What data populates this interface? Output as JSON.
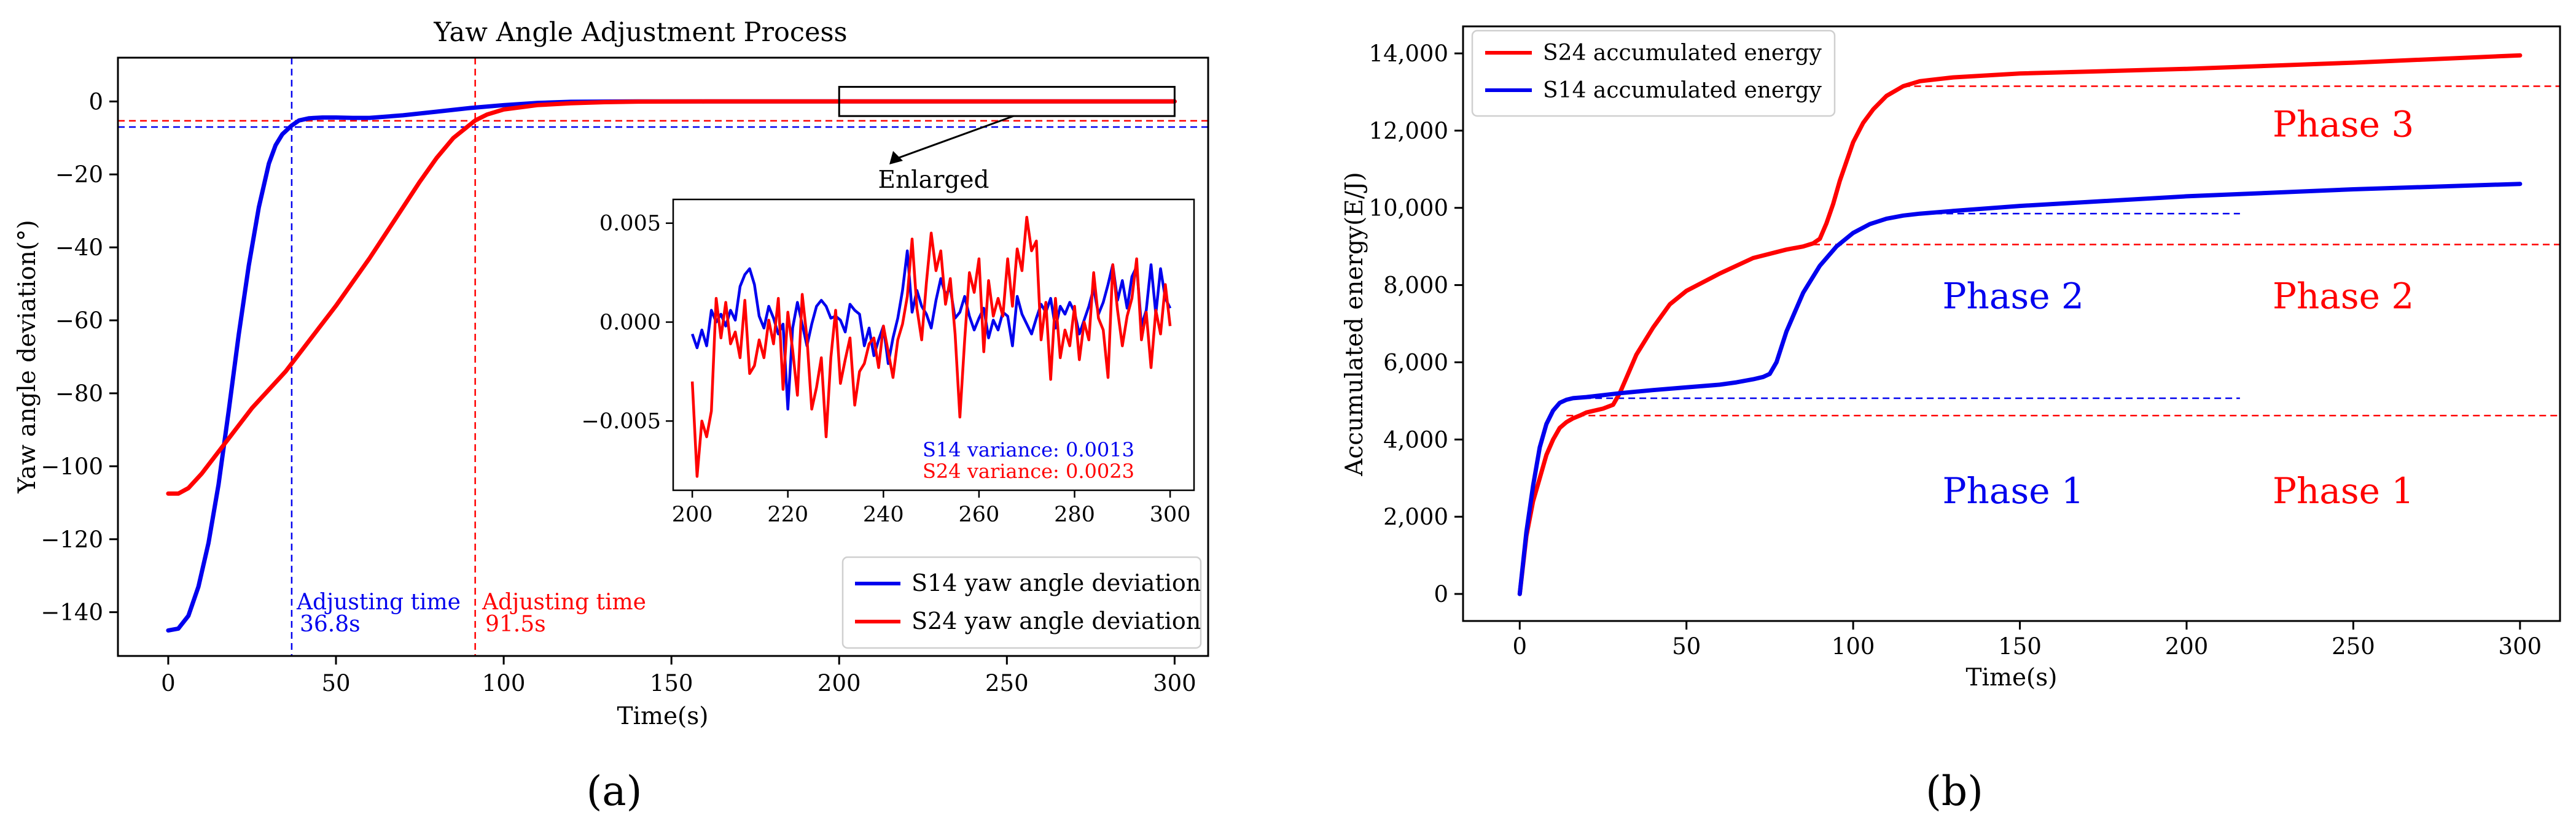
{
  "colors": {
    "blue": "#0000ee",
    "red": "#ff0000",
    "axis": "#000000"
  },
  "chart_data": [
    {
      "id": "a",
      "type": "line",
      "panel_label": "(a)",
      "title": "Yaw Angle Adjustment Process",
      "xlabel": "Time(s)",
      "ylabel": "Yaw angle deviation(°)",
      "xlim": [
        -15,
        310
      ],
      "ylim": [
        -152,
        12
      ],
      "xticks": [
        0,
        50,
        100,
        150,
        200,
        250,
        300
      ],
      "yticks": [
        0,
        -20,
        -40,
        -60,
        -80,
        -100,
        -120,
        -140
      ],
      "ytick_labels": [
        "0",
        "−20",
        "−40",
        "−60",
        "−80",
        "−100",
        "−120",
        "−140"
      ],
      "series": [
        {
          "name": "S14 yaw angle deviation",
          "color": "#0000ee",
          "x": [
            0,
            3,
            6,
            9,
            12,
            15,
            18,
            21,
            24,
            27,
            30,
            32,
            34,
            36.8,
            39,
            42,
            46,
            50,
            55,
            60,
            70,
            80,
            90,
            100,
            110,
            120,
            140,
            160,
            200,
            250,
            300
          ],
          "y": [
            -145,
            -144.5,
            -141,
            -133,
            -121,
            -105,
            -85,
            -64,
            -45,
            -29,
            -17,
            -12,
            -9,
            -6.6,
            -5.2,
            -4.6,
            -4.4,
            -4.4,
            -4.5,
            -4.5,
            -3.8,
            -2.8,
            -1.8,
            -1.0,
            -0.4,
            -0.1,
            0,
            0,
            0,
            0,
            0
          ]
        },
        {
          "name": "S24 yaw angle deviation",
          "color": "#ff0000",
          "x": [
            0,
            3,
            6,
            10,
            15,
            20,
            25,
            30,
            35,
            40,
            45,
            50,
            55,
            60,
            65,
            70,
            75,
            80,
            85,
            91.5,
            95,
            100,
            110,
            120,
            130,
            140,
            160,
            200,
            250,
            300
          ],
          "y": [
            -107.5,
            -107.5,
            -106,
            -102,
            -96,
            -90,
            -84,
            -79,
            -74,
            -68,
            -62,
            -56,
            -49.5,
            -43,
            -36,
            -29,
            -22,
            -15.5,
            -10,
            -5.2,
            -3.6,
            -2.2,
            -1.0,
            -0.5,
            -0.2,
            -0.05,
            0,
            0,
            0,
            0
          ]
        }
      ],
      "reference_lines": [
        {
          "orientation": "vertical",
          "x": 36.8,
          "color": "#0000ee",
          "label_line1": "Adjusting time",
          "label_line2": "36.8s"
        },
        {
          "orientation": "vertical",
          "x": 91.5,
          "color": "#ff0000",
          "label_line1": "Adjusting time",
          "label_line2": "91.5s"
        },
        {
          "orientation": "horizontal",
          "y": -5.3,
          "color": "#ff0000"
        },
        {
          "orientation": "horizontal",
          "y": -7.0,
          "color": "#0000ee"
        }
      ],
      "zoom_box": {
        "x0": 200,
        "x1": 300,
        "y0": -4,
        "y1": 4,
        "label": "Enlarged"
      },
      "legend": {
        "position": "lower-right",
        "entries": [
          {
            "label": "S14 yaw angle deviation",
            "color": "#0000ee"
          },
          {
            "label": "S24 yaw angle deviation",
            "color": "#ff0000"
          }
        ]
      },
      "inset": {
        "xlim": [
          196,
          305
        ],
        "ylim": [
          -0.0085,
          0.0062
        ],
        "xticks": [
          200,
          220,
          240,
          260,
          280,
          300
        ],
        "yticks": [
          0.005,
          0.0,
          -0.005
        ],
        "ytick_labels": [
          "0.005",
          "0.000",
          "−0.005"
        ],
        "variance_notes": [
          {
            "text": "S14 variance: 0.0013",
            "color": "#0000ee"
          },
          {
            "text": "S24 variance: 0.0023",
            "color": "#ff0000"
          }
        ],
        "series": [
          {
            "name": "S14",
            "color": "#0000ee",
            "x": [
              200,
              201,
              202,
              203,
              204,
              205,
              206,
              207,
              208,
              209,
              210,
              211,
              212,
              213,
              214,
              215,
              216,
              217,
              218,
              219,
              220,
              221,
              222,
              223,
              224,
              225,
              226,
              227,
              228,
              229,
              230,
              231,
              232,
              233,
              234,
              235,
              236,
              237,
              238,
              239,
              240,
              241,
              242,
              243,
              244,
              245,
              246,
              247,
              248,
              249,
              250,
              251,
              252,
              253,
              254,
              255,
              256,
              257,
              258,
              259,
              260,
              261,
              262,
              263,
              264,
              265,
              266,
              267,
              268,
              269,
              270,
              271,
              272,
              273,
              274,
              275,
              276,
              277,
              278,
              279,
              280,
              281,
              282,
              283,
              284,
              285,
              286,
              287,
              288,
              289,
              290,
              291,
              292,
              293,
              294,
              295,
              296,
              297,
              298,
              299,
              300
            ],
            "y": [
              -0.0006,
              -0.0013,
              -0.0004,
              -0.0012,
              0.0006,
              0.0,
              0.0004,
              -0.0002,
              0.0006,
              0.0001,
              0.0018,
              0.0024,
              0.0027,
              0.0019,
              0.0003,
              -0.0003,
              0.0008,
              0.0002,
              -0.0006,
              -0.0001,
              -0.0044,
              -0.0003,
              0.001,
              -0.0001,
              -0.0012,
              -0.0001,
              0.0008,
              0.0011,
              0.0008,
              0.0002,
              0.0003,
              0.0001,
              -0.0005,
              0.0009,
              0.0006,
              0.0004,
              -0.0012,
              -0.0003,
              -0.0017,
              -0.0009,
              -0.0002,
              -0.0021,
              -0.0008,
              0.0002,
              0.0016,
              0.0036,
              0.0005,
              0.0016,
              0.0008,
              0.0004,
              -0.0003,
              0.0011,
              0.0022,
              0.0014,
              0.0017,
              0.0002,
              0.0005,
              0.0013,
              0.0003,
              -0.0004,
              0.0002,
              0.0007,
              -0.0008,
              0.0001,
              -0.0004,
              0.0005,
              0.0003,
              -0.0012,
              0.0013,
              0.0004,
              -0.0001,
              -0.0006,
              0.0002,
              0.0009,
              0.0005,
              0.0012,
              -0.0003,
              0.0008,
              0.0004,
              0.001,
              0.0005,
              -0.0006,
              0.0001,
              0.0008,
              0.0017,
              0.0004,
              0.001,
              0.0019,
              0.0029,
              0.0011,
              0.0021,
              0.0007,
              0.0023,
              0.0028,
              -0.0002,
              0.0006,
              0.0029,
              0.0004,
              0.0027,
              0.0012,
              0.0007
            ]
          },
          {
            "name": "S24",
            "color": "#ff0000",
            "x": [
              200,
              201,
              202,
              203,
              204,
              205,
              206,
              207,
              208,
              209,
              210,
              211,
              212,
              213,
              214,
              215,
              216,
              217,
              218,
              219,
              220,
              221,
              222,
              223,
              224,
              225,
              226,
              227,
              228,
              229,
              230,
              231,
              232,
              233,
              234,
              235,
              236,
              237,
              238,
              239,
              240,
              241,
              242,
              243,
              244,
              245,
              246,
              247,
              248,
              249,
              250,
              251,
              252,
              253,
              254,
              255,
              256,
              257,
              258,
              259,
              260,
              261,
              262,
              263,
              264,
              265,
              266,
              267,
              268,
              269,
              270,
              271,
              272,
              273,
              274,
              275,
              276,
              277,
              278,
              279,
              280,
              281,
              282,
              283,
              284,
              285,
              286,
              287,
              288,
              289,
              290,
              291,
              292,
              293,
              294,
              295,
              296,
              297,
              298,
              299,
              300
            ],
            "y": [
              -0.003,
              -0.0078,
              -0.005,
              -0.0058,
              -0.0045,
              0.0012,
              -0.0008,
              0.001,
              -0.0011,
              -0.0005,
              -0.0018,
              0.0011,
              -0.0026,
              -0.0022,
              -0.0009,
              -0.0018,
              0.0001,
              -0.0011,
              0.0012,
              -0.0034,
              0.0005,
              -0.0014,
              -0.0037,
              0.0014,
              -0.0008,
              -0.0044,
              -0.0033,
              -0.0018,
              -0.0058,
              -0.0018,
              0.0006,
              -0.0031,
              -0.0019,
              -0.0008,
              -0.0042,
              -0.0025,
              -0.0021,
              -0.0011,
              -0.0008,
              -0.0023,
              -0.0002,
              -0.0015,
              -0.0028,
              -0.0009,
              -0.0001,
              0.0013,
              0.0042,
              0.0007,
              -0.0009,
              0.002,
              0.0045,
              0.0026,
              0.0036,
              0.0009,
              0.0022,
              -0.0006,
              -0.0048,
              -0.0009,
              0.0025,
              0.0015,
              0.0032,
              -0.0015,
              0.0021,
              0.0003,
              0.0012,
              0.0003,
              0.0032,
              0.0008,
              0.0037,
              0.0026,
              0.0053,
              0.0036,
              0.0041,
              -0.0009,
              0.001,
              -0.0029,
              0.0012,
              -0.0018,
              -0.0004,
              -0.0012,
              0.0008,
              -0.0019,
              0.0,
              -0.0009,
              0.0025,
              0.0002,
              -0.0004,
              -0.0028,
              0.0029,
              0.0006,
              -0.0012,
              0.0003,
              0.0012,
              0.0032,
              -0.0009,
              0.0005,
              -0.0023,
              0.0006,
              -0.0006,
              0.0019,
              -0.0002
            ]
          }
        ]
      }
    },
    {
      "id": "b",
      "type": "line",
      "panel_label": "(b)",
      "title": "",
      "xlabel": "Time(s)",
      "ylabel": "Accumulated energy(E/J)",
      "xlim": [
        -17,
        312
      ],
      "ylim": [
        -700,
        14700
      ],
      "xticks": [
        0,
        50,
        100,
        150,
        200,
        250,
        300
      ],
      "yticks": [
        0,
        2000,
        4000,
        6000,
        8000,
        10000,
        12000,
        14000
      ],
      "ytick_labels": [
        "0",
        "2,000",
        "4,000",
        "6,000",
        "8,000",
        "10,000",
        "12,000",
        "14,000"
      ],
      "series": [
        {
          "name": "S24 accumulated energy",
          "color": "#ff0000",
          "x": [
            0,
            2,
            4,
            6,
            8,
            10,
            12,
            14,
            16,
            18,
            20,
            25,
            28,
            30,
            32,
            35,
            40,
            45,
            50,
            60,
            70,
            80,
            85,
            88,
            90,
            92,
            94,
            96,
            98,
            100,
            103,
            106,
            110,
            115,
            120,
            130,
            150,
            200,
            250,
            300
          ],
          "y": [
            0,
            1500,
            2400,
            3000,
            3600,
            4000,
            4300,
            4450,
            4550,
            4620,
            4700,
            4800,
            4900,
            5200,
            5600,
            6200,
            6900,
            7500,
            7850,
            8300,
            8700,
            8920,
            9000,
            9080,
            9200,
            9600,
            10100,
            10700,
            11200,
            11700,
            12200,
            12550,
            12900,
            13150,
            13280,
            13380,
            13480,
            13600,
            13760,
            13950
          ]
        },
        {
          "name": "S14 accumulated energy",
          "color": "#0000ee",
          "x": [
            0,
            2,
            4,
            6,
            8,
            10,
            12,
            14,
            16,
            20,
            30,
            40,
            50,
            60,
            65,
            70,
            73,
            75,
            77,
            80,
            85,
            90,
            95,
            100,
            105,
            110,
            115,
            120,
            130,
            150,
            200,
            250,
            300
          ],
          "y": [
            0,
            1600,
            2800,
            3800,
            4400,
            4750,
            4950,
            5030,
            5070,
            5100,
            5200,
            5280,
            5350,
            5420,
            5480,
            5560,
            5620,
            5700,
            6000,
            6800,
            7800,
            8500,
            9000,
            9350,
            9580,
            9720,
            9800,
            9850,
            9920,
            10050,
            10300,
            10480,
            10620
          ]
        }
      ],
      "reference_lines": [
        {
          "orientation": "horizontal",
          "y": 4620,
          "x_start": 14,
          "x_end": 312,
          "color": "#ff0000"
        },
        {
          "orientation": "horizontal",
          "y": 9050,
          "x_start": 88,
          "x_end": 312,
          "color": "#ff0000"
        },
        {
          "orientation": "horizontal",
          "y": 13150,
          "x_start": 115,
          "x_end": 312,
          "color": "#ff0000"
        },
        {
          "orientation": "horizontal",
          "y": 5070,
          "x_start": 16,
          "x_end": 216,
          "color": "#0000ee"
        },
        {
          "orientation": "horizontal",
          "y": 9850,
          "x_start": 118,
          "x_end": 216,
          "color": "#0000ee"
        }
      ],
      "phase_labels": [
        {
          "text": "Phase 1",
          "x": 148,
          "y": 2350,
          "color": "#0000ee"
        },
        {
          "text": "Phase 2",
          "x": 148,
          "y": 7400,
          "color": "#0000ee"
        },
        {
          "text": "Phase 1",
          "x": 247,
          "y": 2350,
          "color": "#ff0000"
        },
        {
          "text": "Phase 2",
          "x": 247,
          "y": 7400,
          "color": "#ff0000"
        },
        {
          "text": "Phase 3",
          "x": 247,
          "y": 11850,
          "color": "#ff0000"
        }
      ],
      "legend": {
        "position": "upper-left",
        "entries": [
          {
            "label": "S24 accumulated energy",
            "color": "#ff0000"
          },
          {
            "label": "S14 accumulated energy",
            "color": "#0000ee"
          }
        ]
      }
    }
  ]
}
